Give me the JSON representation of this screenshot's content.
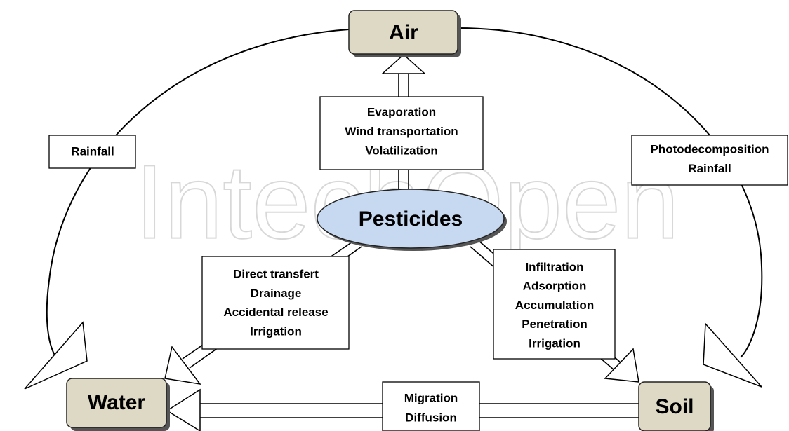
{
  "watermark": "IntechOpen",
  "nodes": {
    "air": "Air",
    "water": "Water",
    "soil": "Soil",
    "pesticides": "Pesticides"
  },
  "processes": {
    "to_air": [
      "Evaporation",
      "Wind transportation",
      "Volatilization"
    ],
    "air_to_water": [
      "Rainfall"
    ],
    "air_to_soil": [
      "Photodecomposition",
      "Rainfall"
    ],
    "to_water": [
      "Direct transfert",
      "Drainage",
      "Accidental release",
      "Irrigation"
    ],
    "to_soil": [
      "Infiltration",
      "Adsorption",
      "Accumulation",
      "Penetration",
      "Irrigation"
    ],
    "soil_to_water": [
      "Migration",
      "Diffusion"
    ]
  }
}
